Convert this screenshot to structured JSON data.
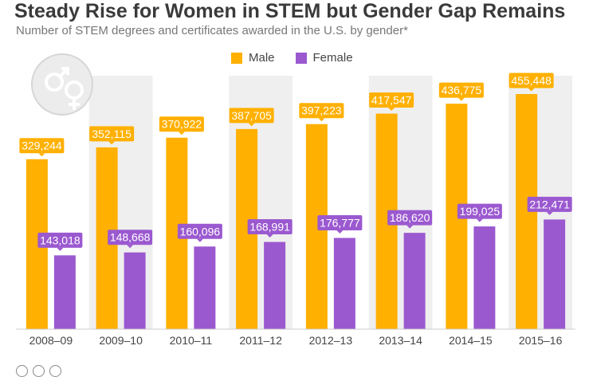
{
  "header": {
    "title": "Steady Rise for Women in STEM but Gender Gap Remains",
    "subtitle": "Number of STEM degrees and certificates awarded in the U.S. by gender*"
  },
  "legend": {
    "male_label": "Male",
    "female_label": "Female"
  },
  "colors": {
    "male": "#FFB000",
    "female": "#9B59D0",
    "band": "#EFEFEF",
    "axis_text": "#444444"
  },
  "icons": {
    "gender": "male-female-symbols-icon"
  },
  "chart_data": {
    "type": "bar",
    "title": "Steady Rise for Women in STEM but Gender Gap Remains",
    "subtitle": "Number of STEM degrees and certificates awarded in the U.S. by gender*",
    "categories": [
      "2008–09",
      "2009–10",
      "2010–11",
      "2011–12",
      "2012–13",
      "2013–14",
      "2014–15",
      "2015–16"
    ],
    "series": [
      {
        "name": "Male",
        "values": [
          329244,
          352115,
          370922,
          387705,
          397223,
          417547,
          436775,
          455448
        ]
      },
      {
        "name": "Female",
        "values": [
          143018,
          148668,
          160096,
          168991,
          176777,
          186620,
          199025,
          212471
        ]
      }
    ],
    "data_labels": {
      "Male": [
        "329,244",
        "352,115",
        "370,922",
        "387,705",
        "397,223",
        "417,547",
        "436,775",
        "455,448"
      ],
      "Female": [
        "143,018",
        "148,668",
        "160,096",
        "168,991",
        "176,777",
        "186,620",
        "199,025",
        "212,471"
      ]
    },
    "ylim": [
      0,
      470000
    ],
    "grid": false,
    "legend_position": "top-center"
  }
}
